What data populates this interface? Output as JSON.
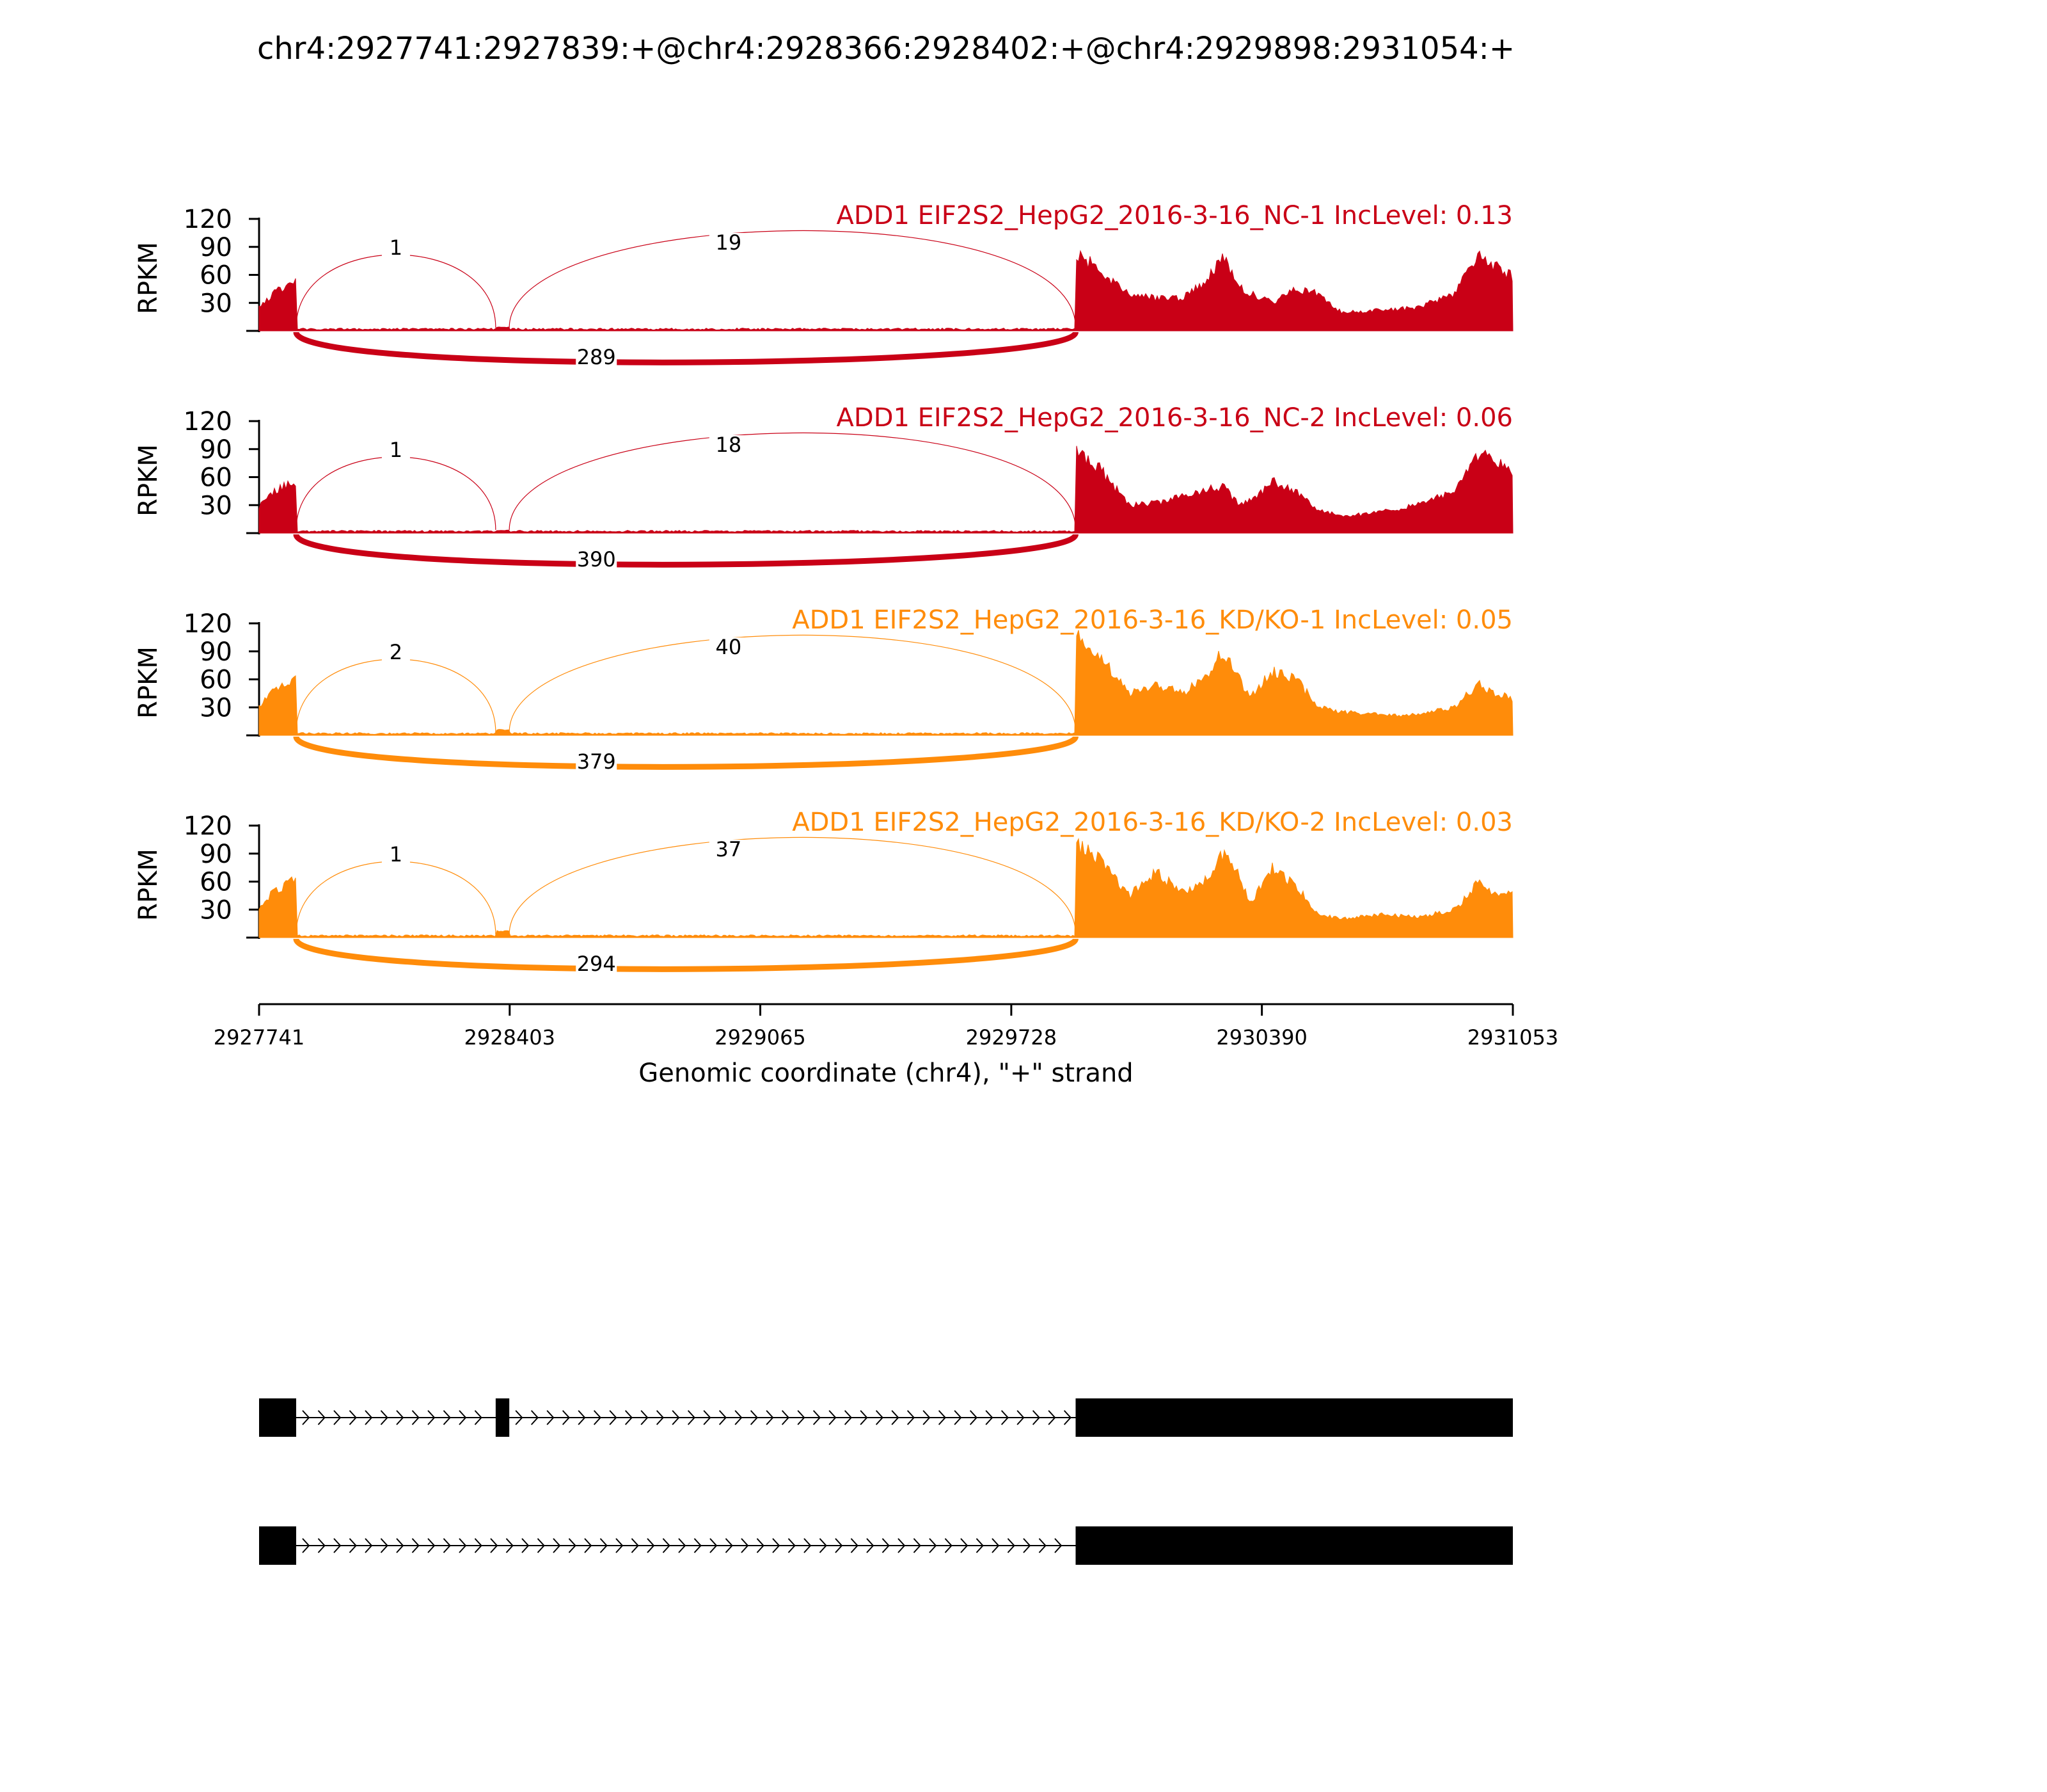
{
  "title": "chr4:2927741:2927839:+@chr4:2928366:2928402:+@chr4:2929898:2931054:+",
  "colors": {
    "nc": "#c90016",
    "kd": "#ff8c0a",
    "axis": "#000000",
    "gene": "#000000"
  },
  "chart_data": {
    "type": "area",
    "title": "chr4:2927741:2927839:+@chr4:2928366:2928402:+@chr4:2929898:2931054:+",
    "xlabel": "Genomic coordinate (chr4), \"+\" strand",
    "ylabel": "RPKM",
    "xlim": [
      2927741,
      2931053
    ],
    "ylim": [
      0,
      120
    ],
    "yticks": [
      30,
      60,
      90,
      120
    ],
    "xticks": [
      "2927741",
      "2928403",
      "2929065",
      "2929728",
      "2930390",
      "2931053"
    ],
    "exons": [
      [
        2927741,
        2927839
      ],
      [
        2928366,
        2928402
      ],
      [
        2929898,
        2931053
      ]
    ],
    "transcripts": [
      {
        "exons": [
          [
            2927741,
            2927839
          ],
          [
            2928366,
            2928402
          ],
          [
            2929898,
            2931053
          ]
        ]
      },
      {
        "exons": [
          [
            2927741,
            2927839
          ],
          [
            2929898,
            2931053
          ]
        ]
      }
    ],
    "panels": [
      {
        "label": "ADD1 EIF2S2_HepG2_2016-3-16_NC-1 IncLevel: 0.13",
        "group": "nc",
        "junctions": {
          "upstream": 1,
          "downstream": 19,
          "skipping": 289
        },
        "profile": [
          [
            2927741,
            25
          ],
          [
            2927780,
            40
          ],
          [
            2927839,
            55
          ],
          [
            2928366,
            4
          ],
          [
            2928402,
            4
          ],
          [
            2929898,
            85
          ],
          [
            2929960,
            65
          ],
          [
            2930040,
            40
          ],
          [
            2930110,
            35
          ],
          [
            2930180,
            35
          ],
          [
            2930230,
            50
          ],
          [
            2930290,
            78
          ],
          [
            2930330,
            48
          ],
          [
            2930360,
            40
          ],
          [
            2930420,
            30
          ],
          [
            2930480,
            45
          ],
          [
            2930540,
            40
          ],
          [
            2930600,
            20
          ],
          [
            2930700,
            22
          ],
          [
            2930800,
            25
          ],
          [
            2930900,
            40
          ],
          [
            2930960,
            80
          ],
          [
            2931000,
            70
          ],
          [
            2931053,
            58
          ]
        ]
      },
      {
        "label": "ADD1 EIF2S2_HepG2_2016-3-16_NC-2 IncLevel: 0.06",
        "group": "nc",
        "junctions": {
          "upstream": 1,
          "downstream": 18,
          "skipping": 390
        },
        "profile": [
          [
            2927741,
            28
          ],
          [
            2927780,
            45
          ],
          [
            2927839,
            55
          ],
          [
            2928366,
            3
          ],
          [
            2928402,
            3
          ],
          [
            2929898,
            90
          ],
          [
            2929960,
            70
          ],
          [
            2930040,
            30
          ],
          [
            2930110,
            32
          ],
          [
            2930180,
            40
          ],
          [
            2930230,
            45
          ],
          [
            2930290,
            50
          ],
          [
            2930330,
            30
          ],
          [
            2930360,
            35
          ],
          [
            2930420,
            55
          ],
          [
            2930480,
            45
          ],
          [
            2930540,
            25
          ],
          [
            2930600,
            18
          ],
          [
            2930700,
            22
          ],
          [
            2930800,
            30
          ],
          [
            2930900,
            45
          ],
          [
            2930960,
            85
          ],
          [
            2931000,
            80
          ],
          [
            2931053,
            68
          ]
        ]
      },
      {
        "label": "ADD1 EIF2S2_HepG2_2016-3-16_KD/KO-1 IncLevel: 0.05",
        "group": "kd",
        "junctions": {
          "upstream": 2,
          "downstream": 40,
          "skipping": 379
        },
        "profile": [
          [
            2927741,
            30
          ],
          [
            2927780,
            48
          ],
          [
            2927839,
            60
          ],
          [
            2928366,
            6
          ],
          [
            2928402,
            6
          ],
          [
            2929898,
            108
          ],
          [
            2929960,
            85
          ],
          [
            2930040,
            45
          ],
          [
            2930110,
            55
          ],
          [
            2930180,
            45
          ],
          [
            2930230,
            58
          ],
          [
            2930290,
            90
          ],
          [
            2930330,
            60
          ],
          [
            2930360,
            40
          ],
          [
            2930420,
            70
          ],
          [
            2930480,
            60
          ],
          [
            2930540,
            30
          ],
          [
            2930600,
            25
          ],
          [
            2930700,
            22
          ],
          [
            2930800,
            22
          ],
          [
            2930900,
            30
          ],
          [
            2930960,
            55
          ],
          [
            2931000,
            45
          ],
          [
            2931053,
            40
          ]
        ]
      },
      {
        "label": "ADD1 EIF2S2_HepG2_2016-3-16_KD/KO-2 IncLevel: 0.03",
        "group": "kd",
        "junctions": {
          "upstream": 1,
          "downstream": 37,
          "skipping": 294
        },
        "profile": [
          [
            2927741,
            30
          ],
          [
            2927780,
            50
          ],
          [
            2927839,
            62
          ],
          [
            2928366,
            7
          ],
          [
            2928402,
            7
          ],
          [
            2929898,
            102
          ],
          [
            2929960,
            85
          ],
          [
            2930040,
            45
          ],
          [
            2930110,
            70
          ],
          [
            2930180,
            48
          ],
          [
            2930230,
            55
          ],
          [
            2930290,
            90
          ],
          [
            2930330,
            65
          ],
          [
            2930360,
            38
          ],
          [
            2930420,
            75
          ],
          [
            2930480,
            55
          ],
          [
            2930540,
            25
          ],
          [
            2930600,
            20
          ],
          [
            2930700,
            25
          ],
          [
            2930800,
            22
          ],
          [
            2930900,
            30
          ],
          [
            2930960,
            58
          ],
          [
            2931000,
            50
          ],
          [
            2931053,
            45
          ]
        ]
      }
    ]
  }
}
